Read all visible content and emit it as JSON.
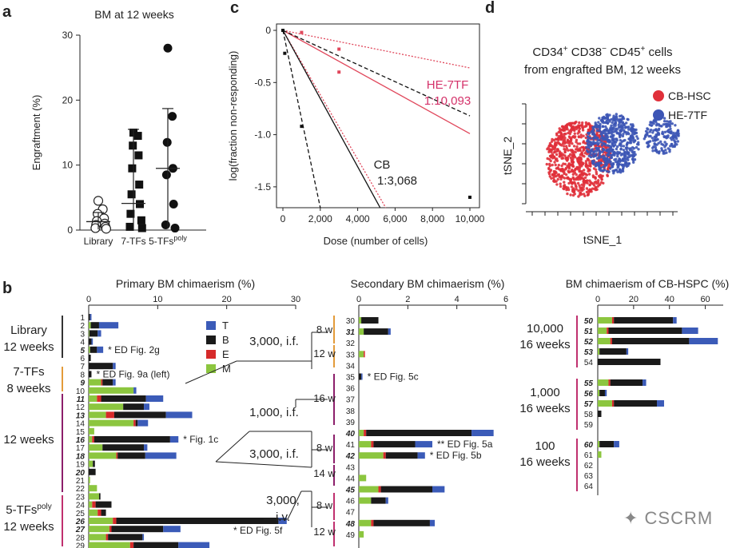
{
  "panel_letters": {
    "a": "a",
    "b": "b",
    "c": "c",
    "d": "d"
  },
  "watermark": "CSCRM",
  "chart_data": [
    {
      "panel": "a",
      "type": "scatter",
      "title": "BM at 12 weeks",
      "ylabel": "Engraftment (%)",
      "ylim": [
        0,
        30
      ],
      "yticks": [
        "0",
        "10",
        "20",
        "30"
      ],
      "categories": [
        "Library",
        "7-TFs",
        "5-TFs"
      ],
      "category_superscript": {
        "5-TFs": "poly"
      },
      "markers": {
        "Library": "open-circle",
        "7-TFs": "square",
        "5-TFs": "circle"
      },
      "groups": [
        {
          "name": "Library",
          "values": [
            4.5,
            3.2,
            2.5,
            1.8,
            1.4,
            1.0,
            0.8,
            0.5,
            0.3,
            0.2
          ],
          "mean": 1.3,
          "sd_low": 0.1,
          "sd_high": 2.7
        },
        {
          "name": "7-TFs",
          "values": [
            15,
            14.5,
            13,
            11.5,
            9.5,
            7,
            5.5,
            4,
            2.5,
            1.5,
            0.5,
            0.3
          ],
          "mean": 4.1,
          "sd_low": 0.1,
          "sd_high": 15.5
        },
        {
          "name": "5-TFs",
          "values": [
            28,
            17.5,
            13.5,
            9.5,
            8.5,
            4,
            0.8,
            0.3
          ],
          "mean": 9.5,
          "sd_low": 0.2,
          "sd_high": 18.7
        }
      ]
    },
    {
      "panel": "c",
      "type": "line",
      "xlabel": "Dose (number of cells)",
      "ylabel": "log(fraction non-responding)",
      "xlim": [
        0,
        10000
      ],
      "ylim": [
        -1.7,
        0
      ],
      "xticks": [
        "0",
        "2,000",
        "4,000",
        "6,000",
        "8,000",
        "10,000"
      ],
      "yticks": [
        "0",
        "-0.5",
        "-1.0",
        "-1.5"
      ],
      "annotations": {
        "he_name": "HE-7TF",
        "he_freq": "1:10,093",
        "cb_name": "CB",
        "cb_freq": "1:3,068"
      },
      "series": [
        {
          "name": "HE-7TF",
          "style": "solid",
          "color": "#e0475b",
          "x": [
            0,
            10000
          ],
          "y": [
            0,
            -0.99
          ]
        },
        {
          "name": "HE-7TF",
          "style": "dotted",
          "color": "#e0475b",
          "x": [
            0,
            10000
          ],
          "y": [
            0,
            -0.36
          ]
        },
        {
          "name": "HE-7TF",
          "style": "dotted",
          "color": "#e0475b",
          "x": [
            0,
            5500
          ],
          "y": [
            0,
            -1.7
          ]
        },
        {
          "name": "CB",
          "style": "solid",
          "color": "#111111",
          "x": [
            0,
            5200
          ],
          "y": [
            0,
            -1.7
          ]
        },
        {
          "name": "CB",
          "style": "dashed",
          "color": "#111111",
          "x": [
            0,
            2000
          ],
          "y": [
            0,
            -1.7
          ]
        },
        {
          "name": "CB",
          "style": "dashed",
          "color": "#111111",
          "x": [
            0,
            10000
          ],
          "y": [
            0,
            -0.82
          ]
        }
      ],
      "points": [
        {
          "x": 0,
          "y": 0,
          "color": "#111111"
        },
        {
          "x": 100,
          "y": -0.22,
          "color": "#111111"
        },
        {
          "x": 1000,
          "y": -0.92,
          "color": "#111111"
        },
        {
          "x": 1000,
          "y": -0.02,
          "color": "#e0475b"
        },
        {
          "x": 3000,
          "y": -0.18,
          "color": "#e0475b"
        },
        {
          "x": 3000,
          "y": -0.4,
          "color": "#e0475b"
        },
        {
          "x": 10000,
          "y": -1.6,
          "color": "#111111"
        }
      ]
    },
    {
      "panel": "d",
      "type": "scatter",
      "title_line1": "CD34",
      "title_line1_parts": [
        "CD34",
        "+",
        " CD38",
        "−",
        " CD45",
        "+",
        " cells"
      ],
      "title_line2": "from engrafted BM, 12 weeks",
      "xlabel": "tSNE_1",
      "ylabel": "tSNE_2",
      "legend": [
        {
          "name": "CB-HSC",
          "color": "#e0303a"
        },
        {
          "name": "HE-7TF",
          "color": "#3c55b5"
        }
      ],
      "legend_position": "top-right",
      "clusters": [
        {
          "series": "CB-HSC",
          "cx": 0.32,
          "cy": 0.55,
          "rx": 0.22,
          "ry": 0.38,
          "n": 750
        },
        {
          "series": "HE-7TF",
          "cx": 0.55,
          "cy": 0.4,
          "rx": 0.18,
          "ry": 0.3,
          "n": 550
        },
        {
          "series": "HE-7TF",
          "cx": 0.88,
          "cy": 0.32,
          "rx": 0.12,
          "ry": 0.18,
          "n": 170
        }
      ]
    },
    {
      "panel": "b",
      "type": "bar",
      "stacked": true,
      "colors": {
        "T": "#3b5bb8",
        "B": "#1a1a1a",
        "E": "#d62a2a",
        "M": "#8cc63f"
      },
      "legend": [
        "T",
        "B",
        "E",
        "M"
      ],
      "subpanels": [
        {
          "title": "Primary BM chimaerism (%)",
          "xlim": [
            0,
            30
          ],
          "xticks": [
            "0",
            "10",
            "20",
            "30"
          ],
          "group_labels": [
            {
              "line1": "Library",
              "line2": "12 weeks",
              "from": 1,
              "to": 6,
              "bar_color": "#333333"
            },
            {
              "line1": "7-TFs",
              "line2": "8 weeks",
              "from": 7,
              "to": 9,
              "bar_color": "#e39b3a"
            },
            {
              "line1": "12 weeks",
              "line2": "",
              "from": 10,
              "to": 22,
              "bar_color": "#8c1f6b"
            },
            {
              "line1": "5-TFs",
              "line1_sup": "poly",
              "line2": "12 weeks",
              "from": 23,
              "to": 29,
              "bar_color": "#c0306f"
            }
          ],
          "rows": [
            {
              "id": "1",
              "M": 0,
              "E": 0,
              "B": 0.2,
              "T": 0.2
            },
            {
              "id": "2",
              "M": 0.3,
              "E": 0,
              "B": 1.2,
              "T": 2.8
            },
            {
              "id": "3",
              "M": 0.1,
              "E": 0,
              "B": 1.2,
              "T": 0.5
            },
            {
              "id": "4",
              "M": 0,
              "E": 0,
              "B": 0.4,
              "T": 0.2
            },
            {
              "id": "5",
              "M": 0.2,
              "E": 0,
              "B": 1.0,
              "T": 0.9,
              "bold": true,
              "note": "* ED Fig. 2g"
            },
            {
              "id": "6",
              "M": 0,
              "E": 0,
              "B": 0.3,
              "T": 0
            },
            {
              "id": "7",
              "M": 0,
              "E": 0,
              "B": 3.5,
              "T": 0.4
            },
            {
              "id": "8",
              "M": 0,
              "E": 0,
              "B": 0.4,
              "T": 0,
              "note": "* ED Fig. 9a (left)"
            },
            {
              "id": "9",
              "M": 1.8,
              "E": 0.2,
              "B": 1.5,
              "T": 0.4,
              "bold": true
            },
            {
              "id": "10",
              "M": 6.5,
              "E": 0,
              "B": 0,
              "T": 0.4
            },
            {
              "id": "11",
              "M": 1.2,
              "E": 0.6,
              "B": 6.5,
              "T": 2.5,
              "bold": true
            },
            {
              "id": "12",
              "M": 5.0,
              "E": 0,
              "B": 3.0,
              "T": 0.8
            },
            {
              "id": "13",
              "M": 2.5,
              "E": 1.2,
              "B": 7.5,
              "T": 3.8,
              "bold": true
            },
            {
              "id": "14",
              "M": 6.5,
              "E": 0.3,
              "B": 0.3,
              "T": 1.5
            },
            {
              "id": "15",
              "M": 0.8,
              "E": 0,
              "B": 0,
              "T": 0
            },
            {
              "id": "16",
              "M": 0.5,
              "E": 0.3,
              "B": 11,
              "T": 1.2,
              "bold": true,
              "note": "* Fig. 1c"
            },
            {
              "id": "17",
              "M": 2.0,
              "E": 0,
              "B": 6.0,
              "T": 0.5
            },
            {
              "id": "18",
              "M": 4.0,
              "E": 0.2,
              "B": 4.0,
              "T": 4.5,
              "bold": true
            },
            {
              "id": "19",
              "M": 0.6,
              "E": 0,
              "B": 0.3,
              "T": 0
            },
            {
              "id": "20",
              "M": 0,
              "E": 0,
              "B": 1.0,
              "T": 0,
              "bold": true
            },
            {
              "id": "21",
              "M": 0.2,
              "E": 0,
              "B": 0,
              "T": 0
            },
            {
              "id": "22",
              "M": 1.2,
              "E": 0,
              "B": 0,
              "T": 0
            },
            {
              "id": "23",
              "M": 1.5,
              "E": 0,
              "B": 0.2,
              "T": 0
            },
            {
              "id": "24",
              "M": 0.5,
              "E": 0.5,
              "B": 2.3,
              "T": 0
            },
            {
              "id": "25",
              "M": 1.3,
              "E": 0.5,
              "B": 0.7,
              "T": 0
            },
            {
              "id": "26",
              "M": 3.5,
              "E": 0.5,
              "B": 23.5,
              "T": 1.2,
              "bold": true
            },
            {
              "id": "27",
              "M": 3.0,
              "E": 0.3,
              "B": 7.5,
              "T": 2.5,
              "bold": true
            },
            {
              "id": "28",
              "M": 2.5,
              "E": 0.3,
              "B": 5.0,
              "T": 0.2
            },
            {
              "id": "29",
              "M": 6.0,
              "E": 0.5,
              "B": 6.5,
              "T": 4.5
            },
            {
              "id": "note_f",
              "hidden": true
            }
          ],
          "final_note": "* ED Fig. 5f"
        },
        {
          "title": "Secondary BM chimaerism (%)",
          "xlim": [
            0,
            6
          ],
          "xticks": [
            "0",
            "2",
            "4",
            "6"
          ],
          "transplant_labels": [
            {
              "line1": "3,000, i.f.",
              "line2": ""
            },
            {
              "line1": "1,000, i.f.",
              "line2": ""
            },
            {
              "line1": "3,000, i.f.",
              "line2": ""
            },
            {
              "line1": "3,000,",
              "line2": "i.v."
            }
          ],
          "week_labels": [
            "8 w",
            "12 w",
            "16 w",
            "8 w",
            "14 w",
            "8 w",
            "12 w"
          ],
          "rows": [
            {
              "id": "30",
              "M": 0.1,
              "E": 0,
              "B": 0.7,
              "T": 0
            },
            {
              "id": "31",
              "M": 0.2,
              "E": 0,
              "B": 1.0,
              "T": 0.1,
              "bold": true
            },
            {
              "id": "32",
              "M": 0,
              "E": 0,
              "B": 0,
              "T": 0
            },
            {
              "id": "33",
              "M": 0.2,
              "E": 0.05,
              "B": 0,
              "T": 0
            },
            {
              "id": "34",
              "M": 0,
              "E": 0,
              "B": 0,
              "T": 0
            },
            {
              "id": "35",
              "M": 0,
              "E": 0,
              "B": 0.1,
              "T": 0.05,
              "note": "* ED Fig. 5c"
            },
            {
              "id": "36",
              "M": 0,
              "E": 0,
              "B": 0,
              "T": 0
            },
            {
              "id": "37",
              "M": 0,
              "E": 0,
              "B": 0,
              "T": 0
            },
            {
              "id": "38",
              "M": 0,
              "E": 0,
              "B": 0,
              "T": 0
            },
            {
              "id": "39",
              "M": 0,
              "E": 0,
              "B": 0,
              "T": 0
            },
            {
              "id": "40",
              "M": 0.2,
              "E": 0.1,
              "B": 4.3,
              "T": 0.9,
              "bold": true
            },
            {
              "id": "41",
              "M": 0.5,
              "E": 0.1,
              "B": 1.7,
              "T": 0.7,
              "note": "** ED Fig. 5a"
            },
            {
              "id": "42",
              "M": 1.0,
              "E": 0.1,
              "B": 1.3,
              "T": 0.3,
              "bold": true,
              "note": "* ED Fig. 5b"
            },
            {
              "id": "43",
              "M": 0,
              "E": 0,
              "B": 0,
              "T": 0
            },
            {
              "id": "44",
              "M": 0.3,
              "E": 0,
              "B": 0,
              "T": 0
            },
            {
              "id": "45",
              "M": 0.8,
              "E": 0.1,
              "B": 2.1,
              "T": 0.5,
              "bold": true
            },
            {
              "id": "46",
              "M": 0.5,
              "E": 0,
              "B": 0.6,
              "T": 0.1
            },
            {
              "id": "47",
              "M": 0,
              "E": 0,
              "B": 0,
              "T": 0
            },
            {
              "id": "48",
              "M": 0.5,
              "E": 0.1,
              "B": 2.3,
              "T": 0.2,
              "bold": true
            },
            {
              "id": "49",
              "M": 0.2,
              "E": 0,
              "B": 0,
              "T": 0
            }
          ]
        },
        {
          "title": "BM chimaerism of CB-HSPC (%)",
          "xlim": [
            0,
            70
          ],
          "xticks": [
            "0",
            "20",
            "40",
            "60"
          ],
          "dose_labels": [
            {
              "line1": "10,000",
              "line2": "16 weeks"
            },
            {
              "line1": "1,000",
              "line2": "16 weeks"
            },
            {
              "line1": "100",
              "line2": "16 weeks"
            }
          ],
          "rows": [
            {
              "id": "50",
              "M": 8,
              "E": 1,
              "B": 33,
              "T": 2,
              "bold": true
            },
            {
              "id": "51",
              "M": 5,
              "E": 1,
              "B": 41,
              "T": 9,
              "bold": true
            },
            {
              "id": "52",
              "M": 7,
              "E": 1,
              "B": 43,
              "T": 16,
              "bold": true
            },
            {
              "id": "53",
              "M": 1,
              "E": 0,
              "B": 15,
              "T": 1,
              "bold": true
            },
            {
              "id": "54",
              "M": 0,
              "E": 0,
              "B": 35,
              "T": 0
            },
            {
              "id": "55",
              "M": 6,
              "E": 1,
              "B": 18,
              "T": 2,
              "bold": true
            },
            {
              "id": "56",
              "M": 1,
              "E": 0,
              "B": 3,
              "T": 1,
              "bold": true
            },
            {
              "id": "57",
              "M": 8,
              "E": 1,
              "B": 24,
              "T": 4,
              "bold": true
            },
            {
              "id": "58",
              "M": 0,
              "E": 0,
              "B": 2,
              "T": 0
            },
            {
              "id": "59",
              "M": 0,
              "E": 0,
              "B": 0,
              "T": 0
            },
            {
              "id": "60",
              "M": 1,
              "E": 0,
              "B": 8,
              "T": 3,
              "bold": true
            },
            {
              "id": "61",
              "M": 2,
              "E": 0,
              "B": 0,
              "T": 0
            },
            {
              "id": "62",
              "M": 0,
              "E": 0,
              "B": 0,
              "T": 0
            },
            {
              "id": "63",
              "M": 0,
              "E": 0,
              "B": 0,
              "T": 0
            },
            {
              "id": "64",
              "M": 0,
              "E": 0,
              "B": 0,
              "T": 0
            }
          ]
        }
      ]
    }
  ]
}
